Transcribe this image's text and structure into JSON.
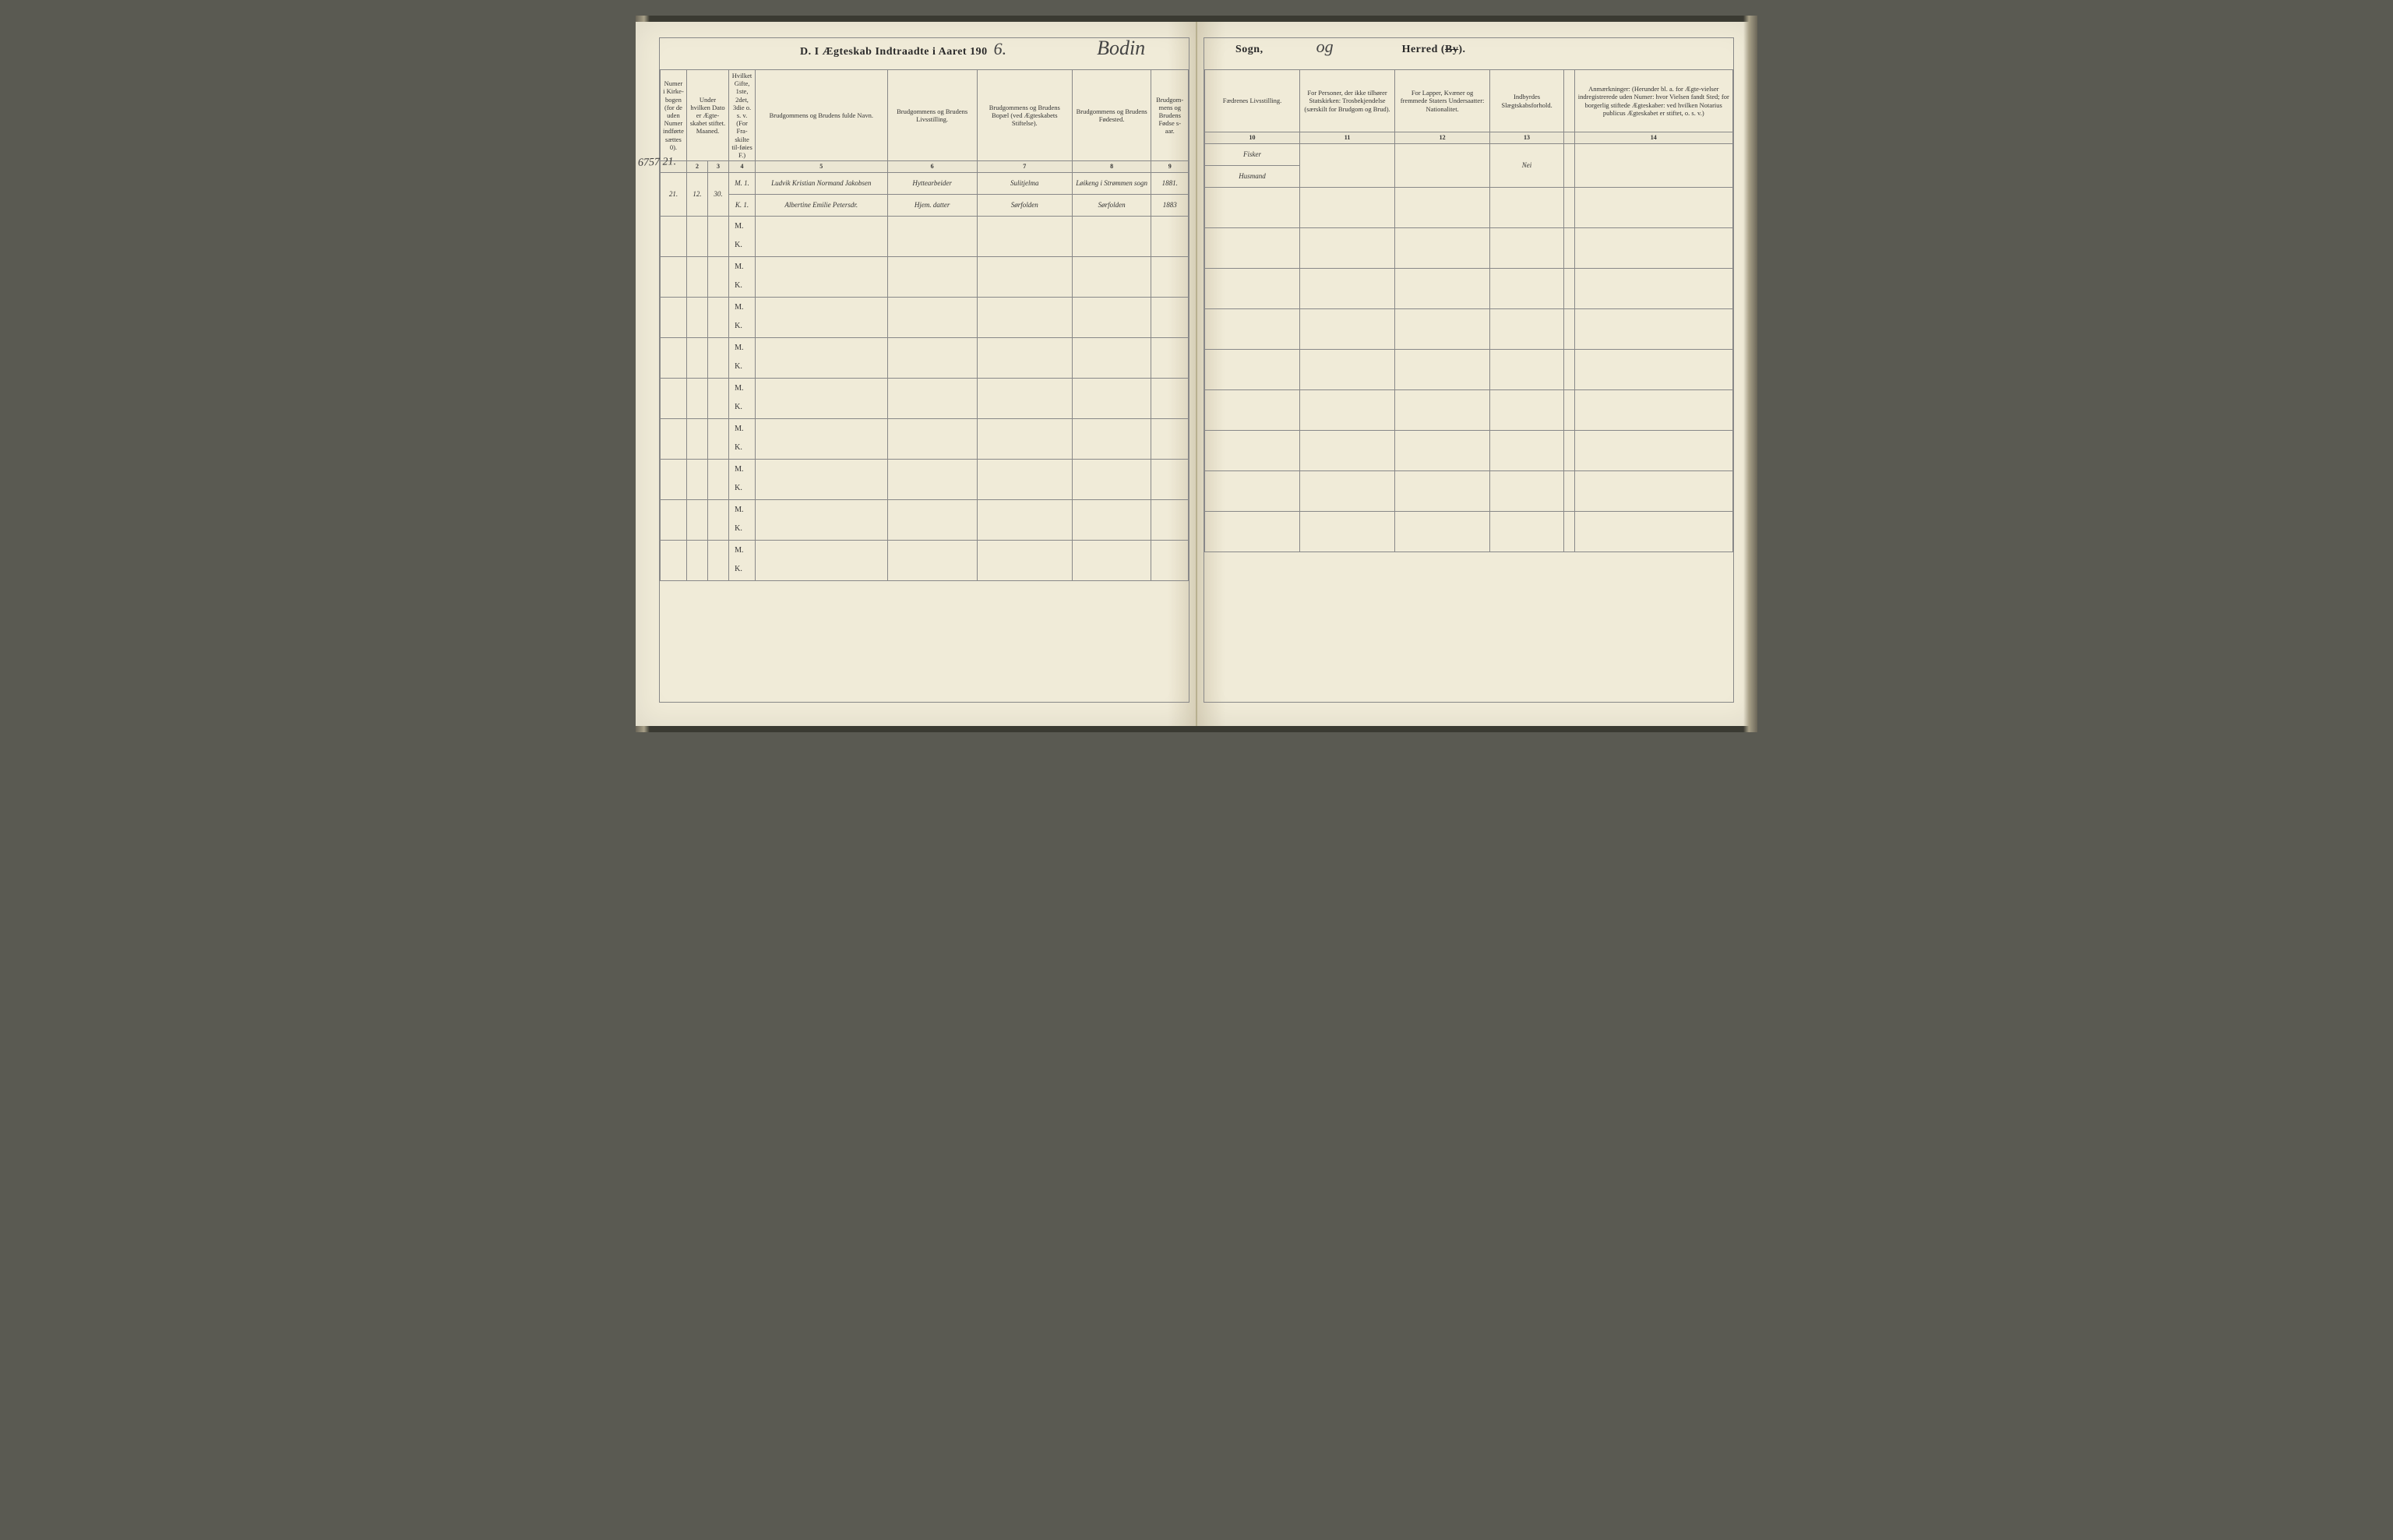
{
  "colors": {
    "paper": "#f0ebd8",
    "ink_print": "#2a2a2a",
    "ink_hand": "#3a3a3a",
    "rule": "#888888",
    "background": "#5a5a52"
  },
  "typography": {
    "print_family": "Georgia, Times New Roman, serif",
    "hand_family": "Brush Script MT, cursive",
    "header_fontsize_pt": 8.5,
    "body_fontsize_pt": 9,
    "title_fontsize_pt": 14,
    "hand_fontsize_pt": 15
  },
  "title": {
    "prefix": "D.  I Ægteskab Indtraadte i Aaret 190",
    "year_suffix_hand": "6.",
    "sogn_hand": "Bodin",
    "sogn_label": "Sogn,",
    "herred_hand": "og",
    "herred_label": "Herred (",
    "herred_strike": "By",
    "herred_close": ")."
  },
  "left_columns": {
    "widths_pct": [
      5,
      4,
      4,
      5,
      25,
      17,
      18,
      15,
      7
    ],
    "headers": [
      "Numer i Kirke-bogen (for de uden Numer indførte sættes 0).",
      "Under hvilken Dato er Ægte-skabet stiftet.\nMaaned.",
      "Dag.",
      "Hvilket Gifte, 1ste, 2det, 3die o. s. v. (For Fra-skilte til-føies F.)",
      "Brudgommens og Brudens fulde Navn.",
      "Brudgommens og Brudens Livsstilling.",
      "Brudgommens og Brudens Bopæl (ved Ægteskabets Stiftelse).",
      "Brudgommens og Brudens Fødested.",
      "Brudgom-mens og Brudens Fødse s-aar."
    ],
    "col_numbers": [
      "",
      "2",
      "3",
      "4",
      "5",
      "6",
      "7",
      "8",
      "9"
    ]
  },
  "right_columns": {
    "widths_pct": [
      18,
      18,
      18,
      14,
      16,
      16
    ],
    "headers": [
      "Fædrenes Livsstilling.",
      "For Personer, der ikke tilhører Statskirken: Trosbekjendelse (særskilt for Brudgom og Brud).",
      "For Lapper, Kvæner og fremmede Staters Undersaatter: Nationalitet.",
      "Indbyrdes Slægtskabsforhold.",
      "",
      "Anmærkninger: (Herunder bl. a. for Ægte-vielser indregistrerede uden Numer: hvor Vielsen fandt Sted; for borgerlig stiftede Ægteskaber: ved hvilken Notarius publicus Ægteskabet er stiftet, o. s. v.)"
    ],
    "col_numbers": [
      "10",
      "11",
      "12",
      "13",
      "",
      "14"
    ]
  },
  "margin_note": "6757\n21.",
  "rows": [
    {
      "num": "21.",
      "maaned": "12.",
      "dag": "30.",
      "groom": {
        "gifte": "M. 1.",
        "navn": "Ludvik Kristian Normand Jakobsen",
        "livsstilling": "Hyttearbeider",
        "bopael": "Sulitjelma",
        "fodested": "Løikeng i Strømmen sogn",
        "aar": "1881.",
        "faedre": "Fisker"
      },
      "bride": {
        "gifte": "K. 1.",
        "navn": "Albertine Emilie Petersdr.",
        "livsstilling": "Hjem. datter",
        "bopael": "Sørfolden",
        "fodested": "Sørfolden",
        "aar": "1883",
        "faedre": "Husmand"
      },
      "trosbekj": "",
      "nationalitet": "",
      "slaegt": "Nei",
      "anm": ""
    }
  ],
  "mk_labels": {
    "m": "M.",
    "k": "K."
  },
  "blank_row_count": 9
}
